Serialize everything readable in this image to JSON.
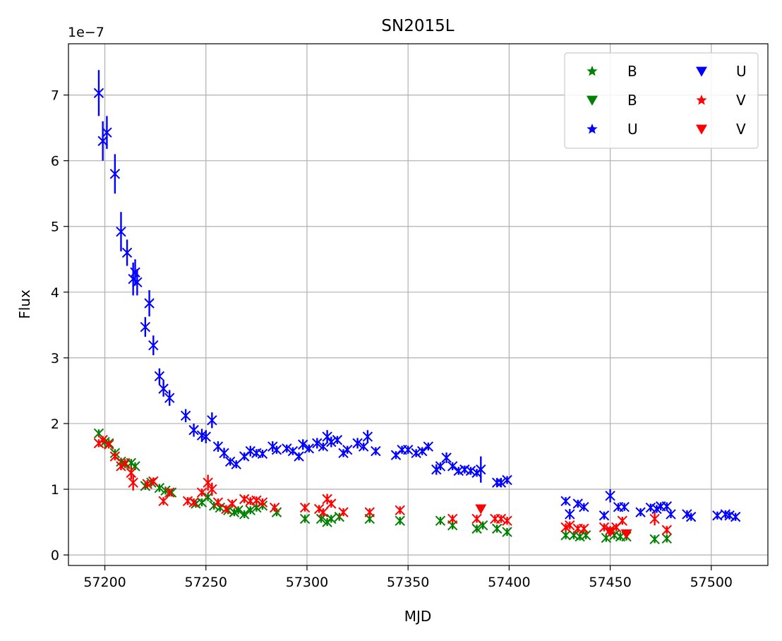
{
  "chart_data": {
    "type": "scatter",
    "title": "SN2015L",
    "xlabel": "MJD",
    "ylabel": "Flux",
    "offset_text": "1e−7",
    "xlim": [
      57182,
      57528
    ],
    "ylim": [
      -0.16,
      7.78
    ],
    "xticks": [
      57200,
      57250,
      57300,
      57350,
      57400,
      57450,
      57500
    ],
    "yticks": [
      0,
      1,
      2,
      3,
      4,
      5,
      6,
      7
    ],
    "grid": true,
    "legend_position": "top-right",
    "legend": [
      {
        "label": "B",
        "marker": "star",
        "color": "#008000"
      },
      {
        "label": "B",
        "marker": "triangle-down",
        "color": "#008000"
      },
      {
        "label": "U",
        "marker": "star",
        "color": "#0000ff"
      },
      {
        "label": "U",
        "marker": "triangle-down",
        "color": "#0000ff"
      },
      {
        "label": "V",
        "marker": "star",
        "color": "#ff0000"
      },
      {
        "label": "V",
        "marker": "triangle-down",
        "color": "#ff0000"
      }
    ],
    "series": [
      {
        "name": "U",
        "color": "#0000ff",
        "marker": "x",
        "points": [
          [
            57197,
            7.03,
            0.35
          ],
          [
            57199,
            6.3,
            0.3
          ],
          [
            57201,
            6.43,
            0.25
          ],
          [
            57205,
            5.8,
            0.3
          ],
          [
            57208,
            4.92,
            0.3
          ],
          [
            57211,
            4.6,
            0.2
          ],
          [
            57214,
            4.2,
            0.25
          ],
          [
            57215,
            4.3,
            0.2
          ],
          [
            57216,
            4.15,
            0.2
          ],
          [
            57220,
            3.47,
            0.15
          ],
          [
            57222,
            3.83,
            0.2
          ],
          [
            57224,
            3.19,
            0.15
          ],
          [
            57227,
            2.72,
            0.12
          ],
          [
            57229,
            2.53,
            0.12
          ],
          [
            57232,
            2.39,
            0.12
          ],
          [
            57240,
            2.12,
            0.1
          ],
          [
            57244,
            1.9,
            0.1
          ],
          [
            57248,
            1.82,
            0.1
          ],
          [
            57250,
            1.8,
            0.1
          ],
          [
            57253,
            2.05,
            0.12
          ],
          [
            57256,
            1.65,
            0.08
          ],
          [
            57259,
            1.55,
            0.08
          ],
          [
            57262,
            1.42,
            0.06
          ],
          [
            57265,
            1.38,
            0.06
          ],
          [
            57269,
            1.5,
            0.06
          ],
          [
            57272,
            1.58,
            0.08
          ],
          [
            57275,
            1.55,
            0.06
          ],
          [
            57278,
            1.54,
            0.06
          ],
          [
            57283,
            1.65,
            0.08
          ],
          [
            57285,
            1.6,
            0.06
          ],
          [
            57290,
            1.62,
            0.06
          ],
          [
            57293,
            1.58,
            0.06
          ],
          [
            57296,
            1.5,
            0.06
          ],
          [
            57298,
            1.68,
            0.08
          ],
          [
            57301,
            1.62,
            0.06
          ],
          [
            57305,
            1.7,
            0.08
          ],
          [
            57308,
            1.65,
            0.06
          ],
          [
            57310,
            1.8,
            0.1
          ],
          [
            57312,
            1.72,
            0.08
          ],
          [
            57315,
            1.75,
            0.06
          ],
          [
            57318,
            1.55,
            0.06
          ],
          [
            57320,
            1.6,
            0.06
          ],
          [
            57325,
            1.7,
            0.08
          ],
          [
            57328,
            1.65,
            0.06
          ],
          [
            57330,
            1.8,
            0.1
          ],
          [
            57334,
            1.58,
            0.06
          ],
          [
            57344,
            1.52,
            0.06
          ],
          [
            57347,
            1.6,
            0.06
          ],
          [
            57350,
            1.6,
            0.06
          ],
          [
            57354,
            1.55,
            0.06
          ],
          [
            57357,
            1.58,
            0.06
          ],
          [
            57360,
            1.65,
            0.06
          ],
          [
            57364,
            1.3,
            0.08
          ],
          [
            57366,
            1.35,
            0.06
          ],
          [
            57369,
            1.48,
            0.08
          ],
          [
            57372,
            1.35,
            0.06
          ],
          [
            57375,
            1.28,
            0.06
          ],
          [
            57378,
            1.3,
            0.06
          ],
          [
            57381,
            1.28,
            0.06
          ],
          [
            57384,
            1.25,
            0.06
          ],
          [
            57386,
            1.3,
            0.2
          ],
          [
            57394,
            1.1,
            0.06
          ],
          [
            57396,
            1.1,
            0.06
          ],
          [
            57399,
            1.14,
            0.06
          ],
          [
            57428,
            0.82,
            0.06
          ],
          [
            57430,
            0.62,
            0.08
          ],
          [
            57434,
            0.78,
            0.06
          ],
          [
            57437,
            0.73,
            0.06
          ],
          [
            57447,
            0.6,
            0.06
          ],
          [
            57450,
            0.9,
            0.1
          ],
          [
            57454,
            0.73,
            0.06
          ],
          [
            57457,
            0.73,
            0.06
          ],
          [
            57465,
            0.65,
            0.06
          ],
          [
            57470,
            0.72,
            0.06
          ],
          [
            57473,
            0.7,
            0.06
          ],
          [
            57475,
            0.74,
            0.06
          ],
          [
            57478,
            0.74,
            0.06
          ],
          [
            57480,
            0.62,
            0.06
          ],
          [
            57488,
            0.62,
            0.06
          ],
          [
            57490,
            0.58,
            0.06
          ],
          [
            57503,
            0.6,
            0.06
          ],
          [
            57507,
            0.62,
            0.06
          ],
          [
            57509,
            0.6,
            0.06
          ],
          [
            57512,
            0.58,
            0.06
          ]
        ]
      },
      {
        "name": "B",
        "color": "#008000",
        "marker": "x",
        "points": [
          [
            57197,
            1.85,
            0.06
          ],
          [
            57200,
            1.72,
            0.06
          ],
          [
            57202,
            1.7,
            0.06
          ],
          [
            57205,
            1.55,
            0.06
          ],
          [
            57208,
            1.42,
            0.06
          ],
          [
            57210,
            1.38,
            0.06
          ],
          [
            57213,
            1.4,
            0.06
          ],
          [
            57215,
            1.35,
            0.06
          ],
          [
            57220,
            1.05,
            0.06
          ],
          [
            57223,
            1.1,
            0.06
          ],
          [
            57227,
            1.02,
            0.06
          ],
          [
            57230,
            0.98,
            0.06
          ],
          [
            57233,
            0.95,
            0.06
          ],
          [
            57245,
            0.78,
            0.06
          ],
          [
            57248,
            0.8,
            0.06
          ],
          [
            57251,
            0.88,
            0.06
          ],
          [
            57254,
            0.75,
            0.06
          ],
          [
            57257,
            0.72,
            0.06
          ],
          [
            57261,
            0.68,
            0.06
          ],
          [
            57264,
            0.65,
            0.06
          ],
          [
            57266,
            0.68,
            0.06
          ],
          [
            57269,
            0.62,
            0.06
          ],
          [
            57272,
            0.68,
            0.06
          ],
          [
            57275,
            0.72,
            0.06
          ],
          [
            57278,
            0.75,
            0.06
          ],
          [
            57285,
            0.65,
            0.06
          ],
          [
            57299,
            0.55,
            0.06
          ],
          [
            57307,
            0.55,
            0.06
          ],
          [
            57310,
            0.5,
            0.06
          ],
          [
            57312,
            0.55,
            0.06
          ],
          [
            57316,
            0.58,
            0.06
          ],
          [
            57331,
            0.55,
            0.06
          ],
          [
            57346,
            0.52,
            0.06
          ],
          [
            57366,
            0.52,
            0.06
          ],
          [
            57372,
            0.45,
            0.06
          ],
          [
            57384,
            0.4,
            0.06
          ],
          [
            57387,
            0.45,
            0.06
          ],
          [
            57394,
            0.4,
            0.06
          ],
          [
            57399,
            0.35,
            0.06
          ],
          [
            57428,
            0.3,
            0.06
          ],
          [
            57432,
            0.3,
            0.06
          ],
          [
            57435,
            0.28,
            0.06
          ],
          [
            57438,
            0.3,
            0.06
          ],
          [
            57448,
            0.26,
            0.06
          ],
          [
            57452,
            0.3,
            0.06
          ],
          [
            57455,
            0.28,
            0.06
          ],
          [
            57458,
            0.28,
            0.06
          ],
          [
            57472,
            0.24,
            0.06
          ],
          [
            57478,
            0.25,
            0.06
          ]
        ]
      },
      {
        "name": "V",
        "color": "#ff0000",
        "marker": "x",
        "points": [
          [
            57197,
            1.7,
            0.06
          ],
          [
            57199,
            1.75,
            0.06
          ],
          [
            57202,
            1.68,
            0.06
          ],
          [
            57205,
            1.5,
            0.06
          ],
          [
            57208,
            1.35,
            0.06
          ],
          [
            57210,
            1.4,
            0.06
          ],
          [
            57213,
            1.25,
            0.1
          ],
          [
            57214,
            1.1,
            0.12
          ],
          [
            57221,
            1.08,
            0.06
          ],
          [
            57224,
            1.12,
            0.06
          ],
          [
            57229,
            0.82,
            0.06
          ],
          [
            57232,
            0.95,
            0.06
          ],
          [
            57241,
            0.82,
            0.06
          ],
          [
            57244,
            0.8,
            0.06
          ],
          [
            57248,
            0.95,
            0.06
          ],
          [
            57251,
            1.1,
            0.12
          ],
          [
            57253,
            1.0,
            0.1
          ],
          [
            57256,
            0.8,
            0.06
          ],
          [
            57260,
            0.7,
            0.06
          ],
          [
            57263,
            0.78,
            0.06
          ],
          [
            57269,
            0.85,
            0.06
          ],
          [
            57272,
            0.82,
            0.06
          ],
          [
            57275,
            0.83,
            0.06
          ],
          [
            57278,
            0.8,
            0.06
          ],
          [
            57284,
            0.72,
            0.06
          ],
          [
            57299,
            0.72,
            0.06
          ],
          [
            57306,
            0.7,
            0.06
          ],
          [
            57308,
            0.65,
            0.06
          ],
          [
            57310,
            0.85,
            0.08
          ],
          [
            57312,
            0.78,
            0.06
          ],
          [
            57318,
            0.65,
            0.06
          ],
          [
            57331,
            0.65,
            0.06
          ],
          [
            57346,
            0.68,
            0.06
          ],
          [
            57372,
            0.55,
            0.06
          ],
          [
            57384,
            0.55,
            0.06
          ],
          [
            57393,
            0.55,
            0.06
          ],
          [
            57396,
            0.55,
            0.06
          ],
          [
            57399,
            0.52,
            0.06
          ],
          [
            57428,
            0.42,
            0.06
          ],
          [
            57430,
            0.45,
            0.06
          ],
          [
            57434,
            0.4,
            0.06
          ],
          [
            57437,
            0.4,
            0.06
          ],
          [
            57447,
            0.42,
            0.06
          ],
          [
            57450,
            0.38,
            0.06
          ],
          [
            57453,
            0.42,
            0.06
          ],
          [
            57456,
            0.52,
            0.06
          ],
          [
            57472,
            0.55,
            0.1
          ],
          [
            57478,
            0.38,
            0.06
          ]
        ]
      },
      {
        "name": "V",
        "color": "#ff0000",
        "marker": "triangle-down",
        "points": [
          [
            57386,
            0.7
          ],
          [
            57450,
            0.35
          ],
          [
            57458,
            0.32
          ]
        ]
      }
    ]
  }
}
